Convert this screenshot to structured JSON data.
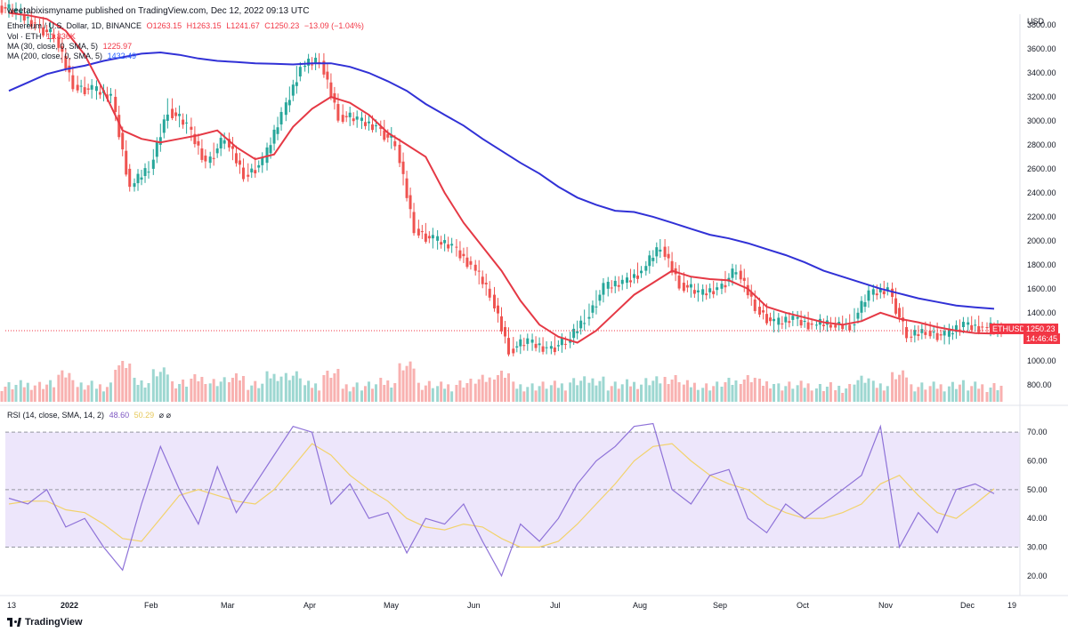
{
  "header": {
    "published": "weetabixismyname published on TradingView.com, Dec 12, 2022 09:13 UTC",
    "symbol": "Ethereum / U.S. Dollar, 1D, BINANCE",
    "ohlc": [
      "O1263.15",
      "H1263.15",
      "L1241.67",
      "C1250.23",
      "−13.09 (−1.04%)"
    ],
    "vol_label": "Vol · ETH",
    "vol_value": "11.836K",
    "ma30_label": "MA (30, close, 0, SMA, 5)",
    "ma30_value": "1225.97",
    "ma200_label": "MA (200, close, 0, SMA, 5)",
    "ma200_value": "1432.49",
    "rsi_label": "RSI (14, close, SMA, 14, 2)",
    "rsi_value": "48.60",
    "rsi_sma_value": "50.29",
    "rsi_extra": "⌀ ⌀"
  },
  "price_axis": {
    "currency": "USD",
    "ticks": [
      "3800.00",
      "3600.00",
      "3400.00",
      "3200.00",
      "3000.00",
      "2800.00",
      "2600.00",
      "2400.00",
      "2200.00",
      "2000.00",
      "1800.00",
      "1600.00",
      "1400.00",
      "1200.00",
      "1000.00",
      "800.00"
    ]
  },
  "last_price": {
    "symbol": "ETHUSD",
    "price": "1250.23",
    "countdown": "14:46:45"
  },
  "rsi_axis": {
    "ticks": [
      "70.00",
      "60.00",
      "50.00",
      "40.00",
      "30.00",
      "20.00"
    ]
  },
  "time_axis": {
    "labels": [
      "13",
      "2022",
      "Feb",
      "Mar",
      "Apr",
      "May",
      "Jun",
      "Jul",
      "Aug",
      "Sep",
      "Oct",
      "Nov",
      "Dec",
      "19"
    ]
  },
  "footer": {
    "brand": "TradingView"
  },
  "colors": {
    "up": "#26a69a",
    "down": "#ef5350",
    "ma30": "#e53945",
    "ma200": "#3131d6",
    "rsi": "#8e72d8",
    "rsi_sma": "#f2d26b",
    "band": "#ede6fb"
  },
  "chart_data": [
    {
      "type": "candlestick",
      "title": "Ethereum / U.S. Dollar, 1D, BINANCE",
      "ylim": [
        650,
        3800
      ],
      "x": [
        "2021-12-13",
        "2021-12-20",
        "2021-12-27",
        "2022-01-03",
        "2022-01-10",
        "2022-01-17",
        "2022-01-24",
        "2022-01-31",
        "2022-02-07",
        "2022-02-14",
        "2022-02-21",
        "2022-02-28",
        "2022-03-07",
        "2022-03-14",
        "2022-03-21",
        "2022-03-28",
        "2022-04-04",
        "2022-04-11",
        "2022-04-18",
        "2022-04-25",
        "2022-05-02",
        "2022-05-09",
        "2022-05-16",
        "2022-05-23",
        "2022-05-30",
        "2022-06-06",
        "2022-06-13",
        "2022-06-20",
        "2022-06-27",
        "2022-07-04",
        "2022-07-11",
        "2022-07-18",
        "2022-07-25",
        "2022-08-01",
        "2022-08-08",
        "2022-08-15",
        "2022-08-22",
        "2022-08-29",
        "2022-09-05",
        "2022-09-12",
        "2022-09-19",
        "2022-09-26",
        "2022-10-03",
        "2022-10-10",
        "2022-10-17",
        "2022-10-24",
        "2022-10-31",
        "2022-11-07",
        "2022-11-14",
        "2022-11-21",
        "2022-11-28",
        "2022-12-05",
        "2022-12-12"
      ],
      "series": [
        {
          "name": "close",
          "values": [
            3900,
            3800,
            3700,
            3300,
            3250,
            3200,
            2450,
            2600,
            3100,
            2950,
            2650,
            2850,
            2550,
            2650,
            3050,
            3450,
            3500,
            3050,
            3000,
            2950,
            2800,
            2100,
            2000,
            1950,
            1800,
            1550,
            1100,
            1150,
            1100,
            1150,
            1350,
            1600,
            1650,
            1750,
            1950,
            1650,
            1550,
            1600,
            1750,
            1450,
            1300,
            1350,
            1300,
            1300,
            1300,
            1550,
            1600,
            1200,
            1250,
            1200,
            1300,
            1280,
            1250
          ]
        },
        {
          "name": "MA (30, close, 0, SMA, 5)",
          "values": [
            3900,
            3880,
            3850,
            3750,
            3550,
            3250,
            2920,
            2850,
            2820,
            2850,
            2880,
            2920,
            2780,
            2680,
            2720,
            2950,
            3100,
            3200,
            3150,
            3050,
            2900,
            2800,
            2700,
            2400,
            2150,
            1950,
            1750,
            1500,
            1300,
            1200,
            1150,
            1250,
            1400,
            1550,
            1650,
            1750,
            1700,
            1680,
            1670,
            1600,
            1450,
            1400,
            1360,
            1320,
            1300,
            1330,
            1400,
            1350,
            1320,
            1280,
            1250,
            1230,
            1225.97
          ]
        },
        {
          "name": "MA (200, close, 0, SMA, 5)",
          "values": [
            3250,
            3320,
            3390,
            3430,
            3460,
            3500,
            3530,
            3560,
            3570,
            3550,
            3520,
            3500,
            3490,
            3480,
            3475,
            3470,
            3480,
            3480,
            3450,
            3400,
            3330,
            3250,
            3140,
            3050,
            2960,
            2850,
            2750,
            2650,
            2560,
            2450,
            2360,
            2300,
            2250,
            2240,
            2200,
            2150,
            2100,
            2050,
            2020,
            1980,
            1930,
            1880,
            1820,
            1750,
            1700,
            1650,
            1600,
            1560,
            1520,
            1490,
            1460,
            1445,
            1432.49
          ]
        }
      ]
    },
    {
      "type": "line",
      "title": "RSI (14, close, SMA, 14, 2)",
      "ylim": [
        15,
        75
      ],
      "x": [
        "2021-12-13",
        "2021-12-20",
        "2021-12-27",
        "2022-01-03",
        "2022-01-10",
        "2022-01-17",
        "2022-01-24",
        "2022-01-31",
        "2022-02-07",
        "2022-02-14",
        "2022-02-21",
        "2022-02-28",
        "2022-03-07",
        "2022-03-14",
        "2022-03-21",
        "2022-03-28",
        "2022-04-04",
        "2022-04-11",
        "2022-04-18",
        "2022-04-25",
        "2022-05-02",
        "2022-05-09",
        "2022-05-16",
        "2022-05-23",
        "2022-05-30",
        "2022-06-06",
        "2022-06-13",
        "2022-06-20",
        "2022-06-27",
        "2022-07-04",
        "2022-07-11",
        "2022-07-18",
        "2022-07-25",
        "2022-08-01",
        "2022-08-08",
        "2022-08-15",
        "2022-08-22",
        "2022-08-29",
        "2022-09-05",
        "2022-09-12",
        "2022-09-19",
        "2022-09-26",
        "2022-10-03",
        "2022-10-10",
        "2022-10-17",
        "2022-10-24",
        "2022-10-31",
        "2022-11-07",
        "2022-11-14",
        "2022-11-21",
        "2022-11-28",
        "2022-12-05",
        "2022-12-12"
      ],
      "series": [
        {
          "name": "RSI",
          "values": [
            47,
            45,
            50,
            37,
            40,
            30,
            22,
            45,
            65,
            50,
            38,
            58,
            42,
            52,
            62,
            72,
            70,
            45,
            52,
            40,
            42,
            28,
            40,
            38,
            45,
            32,
            20,
            38,
            32,
            40,
            52,
            60,
            65,
            72,
            73,
            50,
            45,
            55,
            57,
            40,
            35,
            45,
            40,
            45,
            50,
            55,
            72,
            30,
            42,
            35,
            50,
            52,
            48.6
          ]
        },
        {
          "name": "RSI-based MA",
          "values": [
            45,
            46,
            46,
            43,
            42,
            38,
            33,
            32,
            40,
            48,
            50,
            48,
            46,
            45,
            50,
            58,
            66,
            62,
            55,
            50,
            46,
            40,
            37,
            36,
            38,
            37,
            33,
            30,
            30,
            32,
            38,
            45,
            52,
            60,
            65,
            66,
            60,
            55,
            52,
            50,
            45,
            42,
            40,
            40,
            42,
            45,
            52,
            55,
            48,
            42,
            40,
            45,
            50.29
          ]
        }
      ],
      "bands": [
        30,
        70
      ]
    }
  ]
}
